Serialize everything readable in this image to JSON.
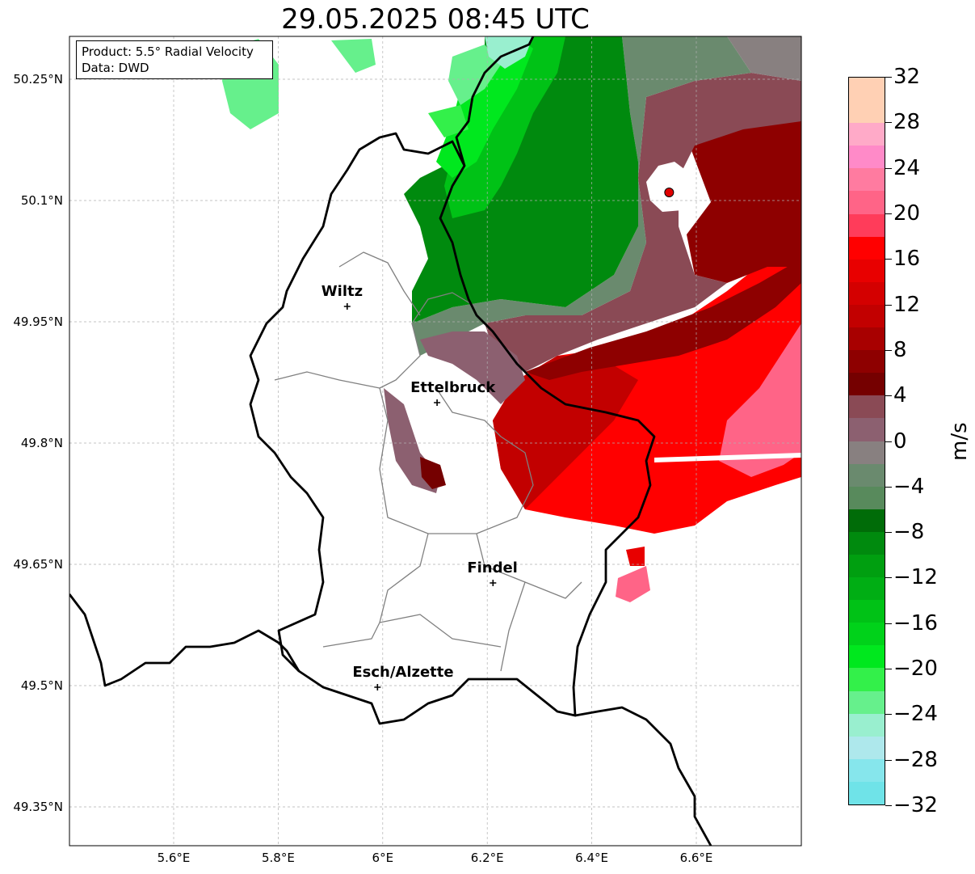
{
  "title": "29.05.2025 08:45 UTC",
  "info_box": {
    "product": "Product: 5.5° Radial Velocity",
    "data_source": "Data: DWD"
  },
  "map": {
    "lon_range": [
      5.4,
      6.8
    ],
    "lat_range": [
      49.3,
      50.3
    ],
    "lat_ticks": [
      {
        "value": 50.25,
        "label": "50.25°N"
      },
      {
        "value": 50.1,
        "label": "50.1°N"
      },
      {
        "value": 49.95,
        "label": "49.95°N"
      },
      {
        "value": 49.8,
        "label": "49.8°N"
      },
      {
        "value": 49.65,
        "label": "49.65°N"
      },
      {
        "value": 49.5,
        "label": "49.5°N"
      },
      {
        "value": 49.35,
        "label": "49.35°N"
      }
    ],
    "lon_ticks": [
      {
        "value": 5.6,
        "label": "5.6°E"
      },
      {
        "value": 5.8,
        "label": "5.8°E"
      },
      {
        "value": 6.0,
        "label": "6°E"
      },
      {
        "value": 6.2,
        "label": "6.2°E"
      },
      {
        "value": 6.4,
        "label": "6.4°E"
      },
      {
        "value": 6.6,
        "label": "6.6°E"
      }
    ],
    "gridlines": true,
    "radar_site": {
      "lon": 6.548,
      "lat": 50.11
    },
    "cities": [
      {
        "name": "Wiltz",
        "lon": 5.932,
        "lat": 49.969
      },
      {
        "name": "Ettelbruck",
        "lon": 6.104,
        "lat": 49.85
      },
      {
        "name": "Findel",
        "lon": 6.211,
        "lat": 49.627
      },
      {
        "name": "Esch/Alzette",
        "lon": 5.99,
        "lat": 49.498
      }
    ]
  },
  "colorbar": {
    "unit": "m/s",
    "min": -32,
    "max": 32,
    "bin_size": 2,
    "ticks": [
      -32,
      -28,
      -24,
      -20,
      -16,
      -12,
      -8,
      -4,
      0,
      4,
      8,
      12,
      16,
      20,
      24,
      28,
      32
    ],
    "tick_labels": [
      "−32",
      "−28",
      "−24",
      "−20",
      "−16",
      "−12",
      "−8",
      "−4",
      "0",
      "4",
      "8",
      "12",
      "16",
      "20",
      "24",
      "28",
      "32"
    ],
    "colors": [
      "#6fe3e8",
      "#86e6ec",
      "#aee8ec",
      "#99efcf",
      "#66f08c",
      "#33f04a",
      "#00e81e",
      "#00d21a",
      "#00c216",
      "#00ae14",
      "#009f10",
      "#008a0e",
      "#006c08",
      "#588a5c",
      "#6a8a6e",
      "#888080",
      "#8c6070",
      "#8a4a55",
      "#750000",
      "#8e0000",
      "#a80000",
      "#c20000",
      "#d40000",
      "#e80000",
      "#ff0000",
      "#ff3c5a",
      "#ff6487",
      "#ff7ba0",
      "#ff8ac8",
      "#ffaac8",
      "#ffd0b4",
      "#ffd0b4"
    ]
  }
}
